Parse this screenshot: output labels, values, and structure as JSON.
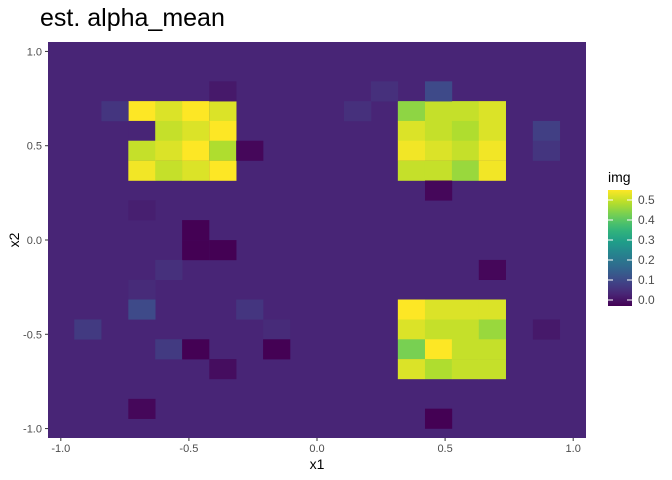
{
  "chart_data": {
    "type": "heatmap",
    "title": "est. alpha_mean",
    "xlabel": "x1",
    "ylabel": "x2",
    "xlim": [
      -1.05,
      1.05
    ],
    "ylim": [
      -1.05,
      1.05
    ],
    "x_ticks": [
      -1.0,
      -0.5,
      0.0,
      0.5,
      1.0
    ],
    "x_tick_labels": [
      "-1.0",
      "-0.5",
      "0.0",
      "0.5",
      "1.0"
    ],
    "y_ticks": [
      -1.0,
      -0.5,
      0.0,
      0.5,
      1.0
    ],
    "y_tick_labels": [
      "-1.0",
      "-0.5",
      "0.0",
      "0.5",
      "1.0"
    ],
    "grid": true,
    "cell_step": 0.105,
    "background_value": 0.03,
    "legend": {
      "title": "img",
      "position": "right",
      "range": [
        -0.03,
        0.55
      ],
      "breaks": [
        0.0,
        0.1,
        0.2,
        0.3,
        0.4,
        0.5
      ],
      "labels": [
        "0.0",
        "0.1",
        "0.2",
        "0.3",
        "0.4",
        "0.5"
      ]
    },
    "colormap": "viridis",
    "cells": [
      {
        "x": -0.684,
        "y": 0.684,
        "value": 0.55
      },
      {
        "x": -0.579,
        "y": 0.684,
        "value": 0.52
      },
      {
        "x": -0.474,
        "y": 0.684,
        "value": 0.55
      },
      {
        "x": -0.368,
        "y": 0.684,
        "value": 0.52
      },
      {
        "x": -0.684,
        "y": 0.579,
        "value": 0.03
      },
      {
        "x": -0.579,
        "y": 0.579,
        "value": 0.5
      },
      {
        "x": -0.474,
        "y": 0.579,
        "value": 0.52
      },
      {
        "x": -0.368,
        "y": 0.579,
        "value": 0.55
      },
      {
        "x": -0.684,
        "y": 0.474,
        "value": 0.5
      },
      {
        "x": -0.579,
        "y": 0.474,
        "value": 0.52
      },
      {
        "x": -0.474,
        "y": 0.474,
        "value": 0.55
      },
      {
        "x": -0.368,
        "y": 0.474,
        "value": 0.48
      },
      {
        "x": -0.684,
        "y": 0.368,
        "value": 0.54
      },
      {
        "x": -0.579,
        "y": 0.368,
        "value": 0.5
      },
      {
        "x": -0.474,
        "y": 0.368,
        "value": 0.52
      },
      {
        "x": -0.368,
        "y": 0.368,
        "value": 0.55
      },
      {
        "x": 0.368,
        "y": 0.684,
        "value": 0.45
      },
      {
        "x": 0.474,
        "y": 0.684,
        "value": 0.5
      },
      {
        "x": 0.579,
        "y": 0.684,
        "value": 0.5
      },
      {
        "x": 0.684,
        "y": 0.684,
        "value": 0.52
      },
      {
        "x": 0.368,
        "y": 0.579,
        "value": 0.52
      },
      {
        "x": 0.474,
        "y": 0.579,
        "value": 0.5
      },
      {
        "x": 0.579,
        "y": 0.579,
        "value": 0.48
      },
      {
        "x": 0.684,
        "y": 0.579,
        "value": 0.52
      },
      {
        "x": 0.368,
        "y": 0.474,
        "value": 0.54
      },
      {
        "x": 0.474,
        "y": 0.474,
        "value": 0.52
      },
      {
        "x": 0.579,
        "y": 0.474,
        "value": 0.5
      },
      {
        "x": 0.684,
        "y": 0.474,
        "value": 0.54
      },
      {
        "x": 0.368,
        "y": 0.368,
        "value": 0.5
      },
      {
        "x": 0.474,
        "y": 0.368,
        "value": 0.5
      },
      {
        "x": 0.579,
        "y": 0.368,
        "value": 0.46
      },
      {
        "x": 0.684,
        "y": 0.368,
        "value": 0.54
      },
      {
        "x": 0.368,
        "y": -0.368,
        "value": 0.55
      },
      {
        "x": 0.474,
        "y": -0.368,
        "value": 0.52
      },
      {
        "x": 0.579,
        "y": -0.368,
        "value": 0.52
      },
      {
        "x": 0.684,
        "y": -0.368,
        "value": 0.52
      },
      {
        "x": 0.368,
        "y": -0.474,
        "value": 0.52
      },
      {
        "x": 0.474,
        "y": -0.474,
        "value": 0.5
      },
      {
        "x": 0.579,
        "y": -0.474,
        "value": 0.5
      },
      {
        "x": 0.684,
        "y": -0.474,
        "value": 0.46
      },
      {
        "x": 0.368,
        "y": -0.579,
        "value": 0.43
      },
      {
        "x": 0.474,
        "y": -0.579,
        "value": 0.55
      },
      {
        "x": 0.579,
        "y": -0.579,
        "value": 0.5
      },
      {
        "x": 0.684,
        "y": -0.579,
        "value": 0.5
      },
      {
        "x": 0.368,
        "y": -0.684,
        "value": 0.52
      },
      {
        "x": 0.474,
        "y": -0.684,
        "value": 0.48
      },
      {
        "x": 0.579,
        "y": -0.684,
        "value": 0.5
      },
      {
        "x": 0.684,
        "y": -0.684,
        "value": 0.5
      },
      {
        "x": -0.368,
        "y": 0.789,
        "value": 0.01
      },
      {
        "x": -0.789,
        "y": 0.684,
        "value": 0.06
      },
      {
        "x": -0.263,
        "y": 0.474,
        "value": -0.02
      },
      {
        "x": -0.684,
        "y": 0.158,
        "value": 0.02
      },
      {
        "x": -0.474,
        "y": 0.053,
        "value": -0.03
      },
      {
        "x": -0.474,
        "y": -0.053,
        "value": -0.03
      },
      {
        "x": -0.368,
        "y": -0.053,
        "value": -0.03
      },
      {
        "x": -0.579,
        "y": -0.158,
        "value": 0.05
      },
      {
        "x": -0.684,
        "y": -0.263,
        "value": 0.04
      },
      {
        "x": -0.684,
        "y": -0.368,
        "value": 0.1
      },
      {
        "x": -0.263,
        "y": -0.368,
        "value": 0.06
      },
      {
        "x": -0.158,
        "y": -0.474,
        "value": 0.04
      },
      {
        "x": -0.895,
        "y": -0.474,
        "value": 0.07
      },
      {
        "x": -0.579,
        "y": -0.579,
        "value": 0.07
      },
      {
        "x": -0.474,
        "y": -0.579,
        "value": -0.03
      },
      {
        "x": -0.158,
        "y": -0.579,
        "value": -0.03
      },
      {
        "x": -0.368,
        "y": -0.684,
        "value": -0.01
      },
      {
        "x": -0.684,
        "y": -0.895,
        "value": -0.02
      },
      {
        "x": 0.263,
        "y": 0.789,
        "value": 0.05
      },
      {
        "x": 0.474,
        "y": 0.789,
        "value": 0.1
      },
      {
        "x": 0.158,
        "y": 0.684,
        "value": 0.05
      },
      {
        "x": 0.474,
        "y": 0.263,
        "value": -0.02
      },
      {
        "x": 0.895,
        "y": 0.579,
        "value": 0.08
      },
      {
        "x": 0.895,
        "y": 0.474,
        "value": 0.06
      },
      {
        "x": 0.684,
        "y": -0.158,
        "value": -0.02
      },
      {
        "x": 0.895,
        "y": -0.474,
        "value": 0.01
      },
      {
        "x": 0.474,
        "y": -0.947,
        "value": -0.03
      }
    ]
  }
}
